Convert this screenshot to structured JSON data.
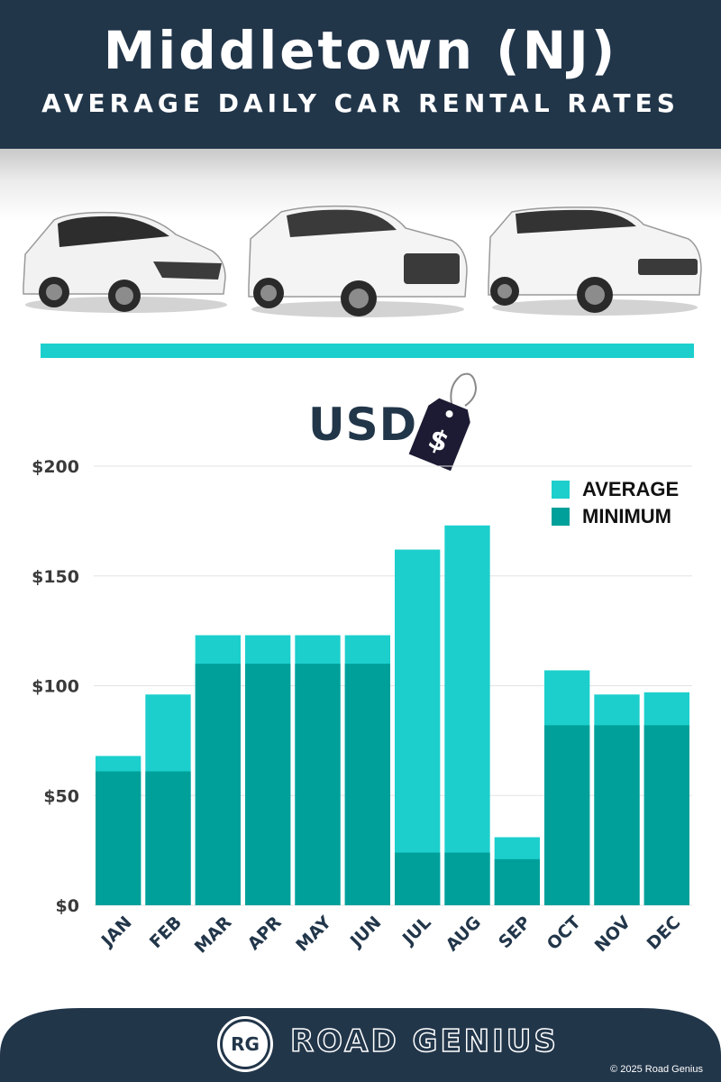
{
  "header": {
    "title": "Middletown (NJ)",
    "subtitle": "AVERAGE DAILY CAR RENTAL RATES"
  },
  "currency_label": "USD",
  "price_tag_symbol": "$",
  "colors": {
    "navy": "#22364a",
    "average": "#1ccfcc",
    "minimum": "#00a09a",
    "accent_bar": "#1ccfcc",
    "grid": "#e3e3e3"
  },
  "chart_data": {
    "type": "bar",
    "stacked": "overlay",
    "categories": [
      "JAN",
      "FEB",
      "MAR",
      "APR",
      "MAY",
      "JUN",
      "JUL",
      "AUG",
      "SEP",
      "OCT",
      "NOV",
      "DEC"
    ],
    "series": [
      {
        "name": "AVERAGE",
        "values": [
          68,
          96,
          123,
          123,
          123,
          123,
          162,
          173,
          31,
          107,
          96,
          97
        ]
      },
      {
        "name": "MINIMUM",
        "values": [
          61,
          61,
          110,
          110,
          110,
          110,
          24,
          24,
          21,
          82,
          82,
          82
        ]
      }
    ],
    "yticks": [
      "$0",
      "$50",
      "$100",
      "$150",
      "$200"
    ],
    "ylim": [
      0,
      200
    ],
    "legend_position": "top-right",
    "grid": true
  },
  "footer": {
    "logo_initials": "RG",
    "brand": "ROAD GENIUS",
    "copyright": "© 2025 Road Genius"
  }
}
